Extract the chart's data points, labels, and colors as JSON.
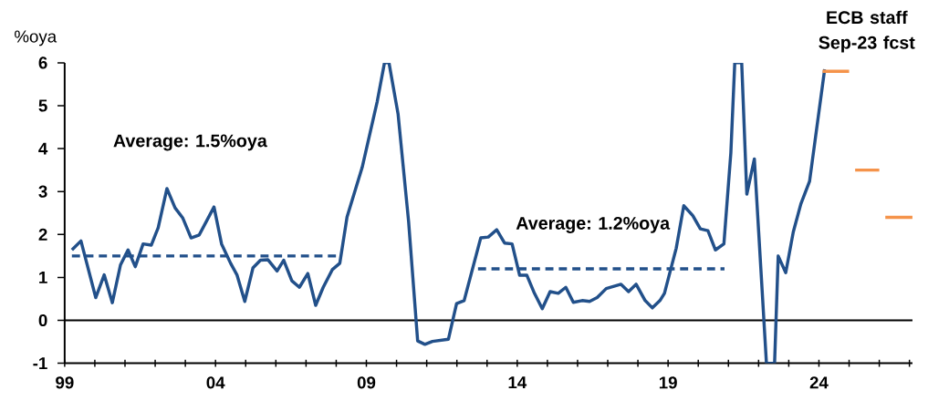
{
  "chart_data": {
    "type": "line",
    "ylabel": "%oya",
    "xlim": [
      1999,
      2027.1
    ],
    "ylim": [
      -1,
      6
    ],
    "xticks": [
      {
        "value": 1999,
        "label": "99"
      },
      {
        "value": 2000,
        "label": null
      },
      {
        "value": 2001,
        "label": null
      },
      {
        "value": 2002,
        "label": null
      },
      {
        "value": 2003,
        "label": null
      },
      {
        "value": 2004,
        "label": "04"
      },
      {
        "value": 2005,
        "label": null
      },
      {
        "value": 2006,
        "label": null
      },
      {
        "value": 2007,
        "label": null
      },
      {
        "value": 2008,
        "label": null
      },
      {
        "value": 2009,
        "label": "09"
      },
      {
        "value": 2010,
        "label": null
      },
      {
        "value": 2011,
        "label": null
      },
      {
        "value": 2012,
        "label": null
      },
      {
        "value": 2013,
        "label": null
      },
      {
        "value": 2014,
        "label": "14"
      },
      {
        "value": 2015,
        "label": null
      },
      {
        "value": 2016,
        "label": null
      },
      {
        "value": 2017,
        "label": null
      },
      {
        "value": 2018,
        "label": null
      },
      {
        "value": 2019,
        "label": "19"
      },
      {
        "value": 2020,
        "label": null
      },
      {
        "value": 2021,
        "label": null
      },
      {
        "value": 2022,
        "label": null
      },
      {
        "value": 2023,
        "label": null
      },
      {
        "value": 2024,
        "label": "24"
      },
      {
        "value": 2025,
        "label": null
      },
      {
        "value": 2026,
        "label": null
      },
      {
        "value": 2027,
        "label": null
      }
    ],
    "yticks": [
      -1,
      0,
      1,
      2,
      3,
      4,
      5,
      6
    ],
    "grid": false,
    "marker": "none",
    "series": [
      {
        "color": "#22508a",
        "line_style": "solid",
        "x": [
          1999.24,
          1999.54,
          2000.03,
          2000.31,
          2000.58,
          2000.85,
          2001.1,
          2001.34,
          2001.6,
          2001.87,
          2002.1,
          2002.39,
          2002.66,
          2002.91,
          2003.19,
          2003.46,
          2003.95,
          2004.2,
          2004.5,
          2004.71,
          2004.97,
          2005.24,
          2005.49,
          2005.74,
          2006.04,
          2006.26,
          2006.53,
          2006.78,
          2007.06,
          2007.32,
          2007.57,
          2007.87,
          2008.12,
          2008.36,
          2008.86,
          2009.36,
          2009.6,
          2009.75,
          2010.05,
          2010.4,
          2010.7,
          2010.94,
          2011.19,
          2011.72,
          2011.99,
          2012.24,
          2012.79,
          2013.04,
          2013.32,
          2013.58,
          2013.83,
          2014.08,
          2014.32,
          2014.57,
          2014.83,
          2015.09,
          2015.36,
          2015.61,
          2015.86,
          2016.15,
          2016.4,
          2016.65,
          2016.95,
          2017.44,
          2017.69,
          2017.94,
          2018.24,
          2018.48,
          2018.73,
          2018.88,
          2019.27,
          2019.52,
          2019.82,
          2020.07,
          2020.32,
          2020.57,
          2020.85,
          2021.08,
          2021.21,
          2021.44,
          2021.61,
          2021.86,
          2022.26,
          2022.53,
          2022.65,
          2022.9,
          2023.15,
          2023.4,
          2023.69,
          2024.19
        ],
        "values": [
          1.64,
          1.85,
          0.53,
          1.06,
          0.41,
          1.29,
          1.64,
          1.25,
          1.78,
          1.75,
          2.16,
          3.07,
          2.62,
          2.39,
          1.92,
          1.99,
          2.64,
          1.78,
          1.33,
          1.06,
          0.44,
          1.22,
          1.4,
          1.41,
          1.15,
          1.4,
          0.92,
          0.77,
          1.09,
          0.35,
          0.77,
          1.18,
          1.33,
          2.41,
          3.56,
          5.1,
          6.0,
          6.0,
          4.81,
          2.3,
          -0.48,
          -0.56,
          -0.49,
          -0.44,
          0.39,
          0.46,
          1.92,
          1.94,
          2.11,
          1.8,
          1.78,
          1.05,
          1.05,
          0.63,
          0.27,
          0.67,
          0.63,
          0.77,
          0.42,
          0.46,
          0.44,
          0.53,
          0.74,
          0.84,
          0.67,
          0.84,
          0.46,
          0.29,
          0.46,
          0.63,
          1.68,
          2.67,
          2.44,
          2.13,
          2.09,
          1.64,
          1.78,
          3.9,
          6.0,
          6.0,
          2.94,
          3.76,
          -1.0,
          -1.0,
          1.5,
          1.11,
          2.06,
          2.71,
          3.24,
          5.85
        ]
      },
      {
        "color": "#22508a",
        "line_style": "dashed",
        "x": [
          1999.24,
          2008.1
        ],
        "values": [
          1.5,
          1.5
        ]
      },
      {
        "color": "#22508a",
        "line_style": "dashed",
        "x": [
          2012.7,
          2020.87
        ],
        "values": [
          1.2,
          1.2
        ]
      },
      {
        "color": "#f5934a",
        "line_style": "solid",
        "x": [
          2024.12,
          2025.0,
          2025.1,
          2025.2,
          2026.0,
          2026.1,
          2026.2,
          2027.1
        ],
        "values": [
          5.8,
          5.8,
          null,
          3.5,
          3.5,
          null,
          2.4,
          2.4
        ]
      }
    ],
    "ref_lines": [
      {
        "axis": "y",
        "value": 0,
        "color": "#000000"
      }
    ],
    "annotations": [
      "Average: 1.5%oya",
      "Average: 1.2%oya",
      "ECB staff Sep-23 fcst"
    ]
  }
}
